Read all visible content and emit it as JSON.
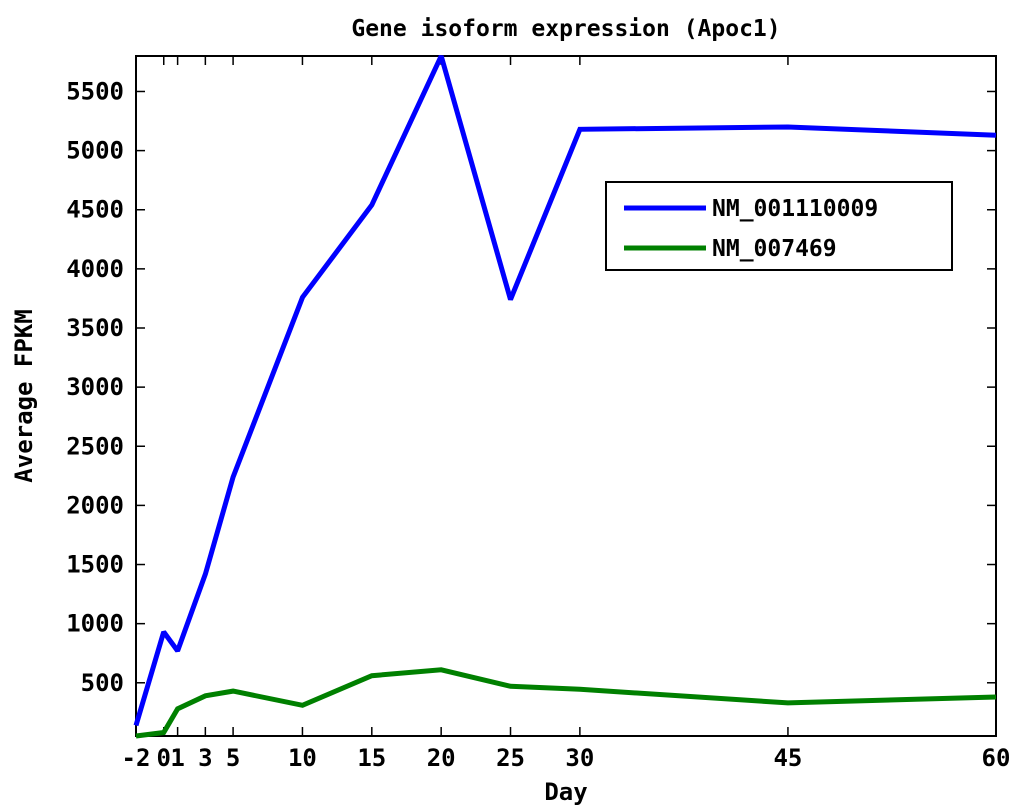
{
  "chart_data": {
    "type": "line",
    "title": "Gene isoform expression (Apoc1)",
    "xlabel": "Day",
    "ylabel": "Average FPKM",
    "x": [
      -2,
      0,
      1,
      3,
      5,
      10,
      15,
      20,
      25,
      30,
      45,
      60
    ],
    "xticks": [
      "-2",
      "0",
      "1",
      "3",
      "5",
      "10",
      "15",
      "20",
      "25",
      "30",
      "45",
      "60"
    ],
    "yticks": [
      "500",
      "1000",
      "1500",
      "2000",
      "2500",
      "3000",
      "3500",
      "4000",
      "4500",
      "5000",
      "5500"
    ],
    "ytick_values": [
      500,
      1000,
      1500,
      2000,
      2500,
      3000,
      3500,
      4000,
      4500,
      5000,
      5500
    ],
    "ylim": [
      50,
      5800
    ],
    "grid": false,
    "legend_position": "top-right",
    "series": [
      {
        "name": "NM_001110009",
        "color": "#0000ff",
        "values": [
          140,
          930,
          770,
          1420,
          2240,
          3760,
          4540,
          5800,
          3740,
          5180,
          5200,
          5130
        ]
      },
      {
        "name": "NM_007469",
        "color": "#008000",
        "values": [
          50,
          80,
          280,
          390,
          430,
          310,
          560,
          610,
          470,
          445,
          330,
          380
        ]
      }
    ]
  }
}
